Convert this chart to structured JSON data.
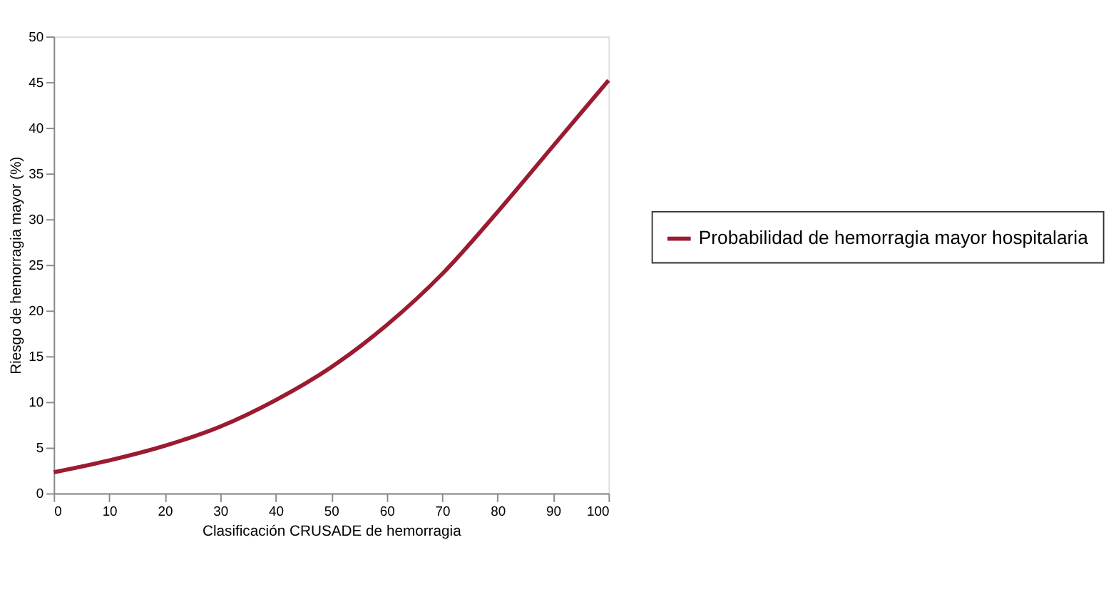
{
  "chart_data": {
    "type": "line",
    "xlabel": "Clasificación CRUSADE de hemorragia",
    "ylabel": "Riesgo de hemorragia mayor (%)",
    "x": [
      0,
      10,
      20,
      30,
      40,
      50,
      60,
      70,
      80,
      90,
      100
    ],
    "series": [
      {
        "name": "Probabilidad de hemorragia mayor hospitalaria",
        "color": "#9b1b30",
        "values": [
          2.3,
          3.6,
          5.2,
          7.3,
          10.2,
          13.8,
          18.4,
          24.0,
          30.8,
          38.0,
          45.2
        ]
      }
    ],
    "xlim": [
      0,
      100
    ],
    "xticks": [
      0,
      10,
      20,
      30,
      40,
      50,
      60,
      70,
      80,
      90,
      100
    ],
    "ylim": [
      0,
      50
    ],
    "yticks": [
      0,
      5,
      10,
      15,
      20,
      25,
      30,
      35,
      40,
      45,
      50
    ],
    "grid": false,
    "legend": "right",
    "marker": "none",
    "line_style": "solid"
  }
}
